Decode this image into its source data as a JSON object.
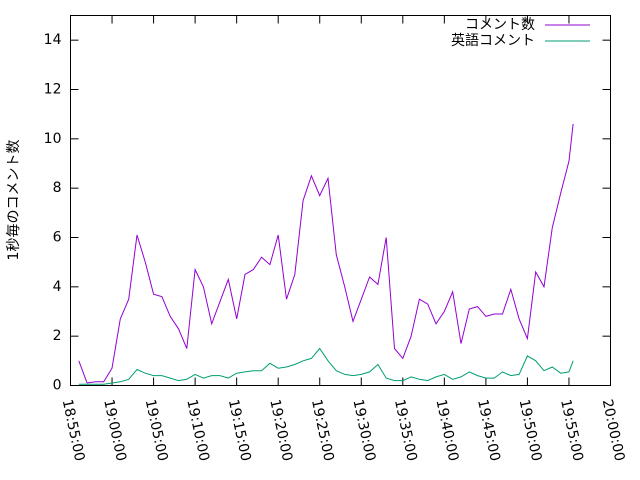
{
  "chart_data": {
    "type": "line",
    "ylabel": "1秒毎のコメント数",
    "x": [
      "18:56:00",
      "18:57:00",
      "18:58:00",
      "18:59:00",
      "19:00:00",
      "19:01:00",
      "19:02:00",
      "19:03:00",
      "19:04:00",
      "19:05:00",
      "19:06:00",
      "19:07:00",
      "19:08:00",
      "19:09:00",
      "19:10:00",
      "19:11:00",
      "19:12:00",
      "19:13:00",
      "19:14:00",
      "19:15:00",
      "19:16:00",
      "19:17:00",
      "19:18:00",
      "19:19:00",
      "19:20:00",
      "19:21:00",
      "19:22:00",
      "19:23:00",
      "19:24:00",
      "19:25:00",
      "19:26:00",
      "19:27:00",
      "19:28:00",
      "19:29:00",
      "19:30:00",
      "19:31:00",
      "19:32:00",
      "19:33:00",
      "19:34:00",
      "19:35:00",
      "19:36:00",
      "19:37:00",
      "19:38:00",
      "19:39:00",
      "19:40:00",
      "19:41:00",
      "19:42:00",
      "19:43:00",
      "19:44:00",
      "19:45:00",
      "19:46:00",
      "19:47:00",
      "19:48:00",
      "19:49:00",
      "19:50:00",
      "19:51:00",
      "19:52:00",
      "19:53:00",
      "19:54:00",
      "19:55:00",
      "19:55:30"
    ],
    "series": [
      {
        "name": "コメント数",
        "color": "#9400d3",
        "values": [
          1.0,
          0.1,
          0.15,
          0.15,
          0.7,
          2.7,
          3.5,
          6.1,
          5.0,
          3.7,
          3.6,
          2.8,
          2.3,
          1.5,
          4.7,
          4.0,
          2.5,
          3.4,
          4.3,
          2.7,
          4.5,
          4.7,
          5.2,
          4.9,
          6.1,
          3.5,
          4.5,
          7.5,
          8.5,
          7.7,
          8.4,
          5.3,
          4.0,
          2.6,
          3.5,
          4.4,
          4.1,
          6.0,
          1.5,
          1.1,
          2.0,
          3.5,
          3.3,
          2.5,
          3.0,
          3.8,
          1.7,
          3.1,
          3.2,
          2.8,
          2.9,
          2.9,
          3.9,
          2.7,
          1.9,
          4.6,
          4.0,
          6.4,
          7.8,
          9.1,
          10.6
        ]
      },
      {
        "name": "英語コメント",
        "color": "#009e73",
        "values": [
          0.05,
          0.05,
          0.05,
          0.05,
          0.1,
          0.15,
          0.25,
          0.65,
          0.5,
          0.4,
          0.4,
          0.3,
          0.2,
          0.25,
          0.45,
          0.3,
          0.4,
          0.4,
          0.3,
          0.5,
          0.55,
          0.6,
          0.6,
          0.9,
          0.7,
          0.75,
          0.85,
          1.0,
          1.1,
          1.5,
          1.0,
          0.6,
          0.45,
          0.4,
          0.45,
          0.55,
          0.85,
          0.3,
          0.2,
          0.2,
          0.35,
          0.25,
          0.2,
          0.35,
          0.45,
          0.25,
          0.35,
          0.55,
          0.4,
          0.3,
          0.3,
          0.55,
          0.4,
          0.45,
          1.2,
          1.0,
          0.6,
          0.75,
          0.5,
          0.55,
          1.0
        ]
      }
    ],
    "xlim": [
      "18:55:00",
      "20:00:00"
    ],
    "xticks": [
      "18:55:00",
      "19:00:00",
      "19:05:00",
      "19:10:00",
      "19:15:00",
      "19:20:00",
      "19:25:00",
      "19:30:00",
      "19:35:00",
      "19:40:00",
      "19:45:00",
      "19:50:00",
      "19:55:00",
      "20:00:00"
    ],
    "ylim": [
      0,
      15
    ],
    "yticks": [
      0,
      2,
      4,
      6,
      8,
      10,
      12,
      14
    ],
    "legend": "upper right"
  }
}
